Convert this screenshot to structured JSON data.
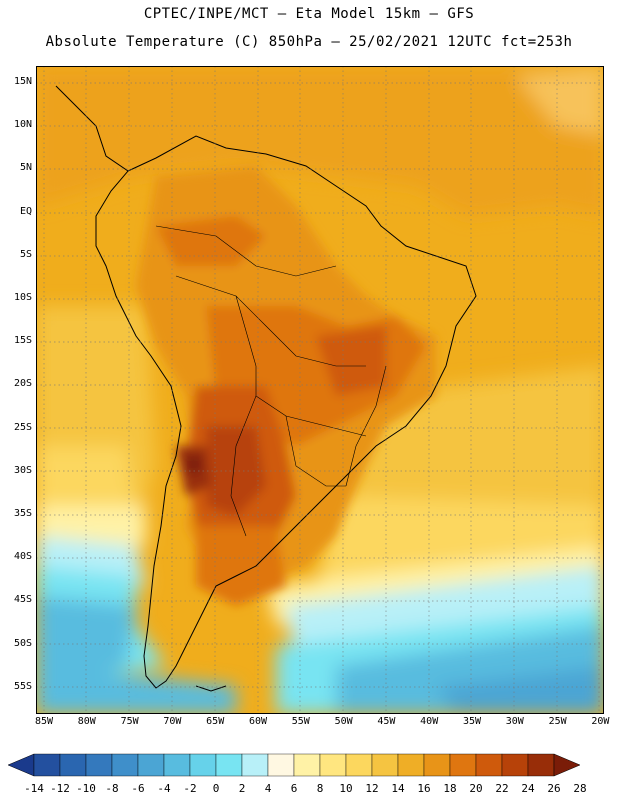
{
  "header": {
    "title_line1": "CPTEC/INPE/MCT –  Eta Model 15km – GFS",
    "title_line2": "Absolute Temperature (C) 850hPa – 25/02/2021 12UTC fct=253h"
  },
  "axes": {
    "lat_labels": [
      "15N",
      "10N",
      "5N",
      "EQ",
      "5S",
      "10S",
      "15S",
      "20S",
      "25S",
      "30S",
      "35S",
      "40S",
      "45S",
      "50S",
      "55S"
    ],
    "lon_labels": [
      "85W",
      "80W",
      "75W",
      "70W",
      "65W",
      "60W",
      "55W",
      "50W",
      "45W",
      "40W",
      "35W",
      "30W",
      "25W",
      "20W"
    ]
  },
  "colorbar": {
    "labels": [
      "-14",
      "-12",
      "-10",
      "-8",
      "-6",
      "-4",
      "-2",
      "0",
      "2",
      "4",
      "6",
      "8",
      "10",
      "12",
      "14",
      "16",
      "18",
      "20",
      "22",
      "24",
      "26",
      "28"
    ],
    "colors": [
      "#1a3a8c",
      "#23509f",
      "#2a66b0",
      "#3479bd",
      "#3f8fca",
      "#4ba5d4",
      "#58bcdf",
      "#66d2ea",
      "#78e4f2",
      "#b8f0f8",
      "#fff8e2",
      "#fff2a6",
      "#ffe680",
      "#fcd75e",
      "#f5c441",
      "#efae26",
      "#e89418",
      "#df7610",
      "#cf5a0c",
      "#b74209",
      "#982d08",
      "#7a1c08"
    ]
  }
}
